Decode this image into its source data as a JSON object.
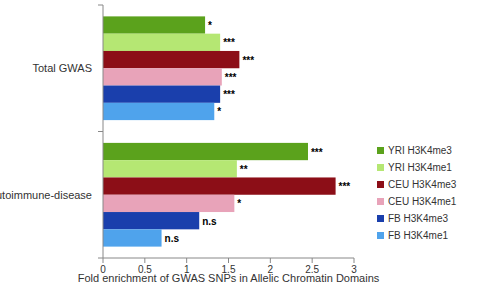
{
  "chart_data": {
    "type": "bar",
    "orientation": "horizontal",
    "x_label": "Fold enrichment of GWAS SNPs in Allelic Chromatin Domains",
    "categories": [
      "Total GWAS",
      "Autoimmune-disease"
    ],
    "series": [
      {
        "name": "YRI H3K4me3",
        "color": "#5ba21c",
        "values": [
          1.22,
          2.45
        ],
        "significance": [
          "*",
          "***"
        ]
      },
      {
        "name": "YRI H3K4me1",
        "color": "#b5e773",
        "values": [
          1.4,
          1.6
        ],
        "significance": [
          "***",
          "**"
        ]
      },
      {
        "name": "CEU H3K4me3",
        "color": "#8c0e17",
        "values": [
          1.63,
          2.78
        ],
        "significance": [
          "***",
          "***"
        ]
      },
      {
        "name": "CEU H3K4me1",
        "color": "#e8a3b9",
        "values": [
          1.42,
          1.57
        ],
        "significance": [
          "***",
          "*"
        ]
      },
      {
        "name": "FB H3K4me3",
        "color": "#1a3fac",
        "values": [
          1.4,
          1.15
        ],
        "significance": [
          "***",
          "n.s"
        ]
      },
      {
        "name": "FB H3K4me1",
        "color": "#4fa3ec",
        "values": [
          1.33,
          0.7
        ],
        "significance": [
          "*",
          "n.s"
        ]
      }
    ],
    "xlim": [
      0,
      3
    ],
    "xticks": [
      0,
      0.5,
      1,
      1.5,
      2,
      2.5,
      3
    ],
    "grid": false,
    "legend": "right"
  }
}
